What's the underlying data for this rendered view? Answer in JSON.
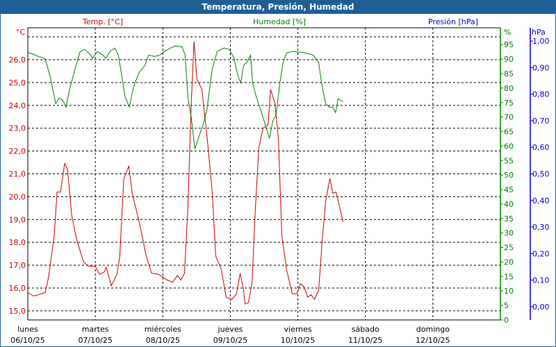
{
  "window": {
    "title": "Temperatura, Presión, Humedad"
  },
  "chart_data": {
    "type": "line",
    "title": "Temperatura, Presión, Humedad",
    "x_unit": "hours since lunes 06/10/25 00:00",
    "x_range": [
      0,
      168
    ],
    "day_labels": [
      {
        "day": "lunes",
        "date": "06/10/25"
      },
      {
        "day": "martes",
        "date": "07/10/25"
      },
      {
        "day": "miércoles",
        "date": "08/10/25"
      },
      {
        "day": "jueves",
        "date": "09/10/25"
      },
      {
        "day": "viernes",
        "date": "10/10/25"
      },
      {
        "day": "sábado",
        "date": "11/10/25"
      },
      {
        "day": "domingo",
        "date": "12/10/25"
      }
    ],
    "grid": true,
    "axes": {
      "temp": {
        "legend": "Temp. [°C]",
        "unit": "°C",
        "range": [
          14.6,
          27.4
        ],
        "ticks": [
          "15,0",
          "16,0",
          "17,0",
          "18,0",
          "19,0",
          "20,0",
          "21,0",
          "22,0",
          "23,0",
          "24,0",
          "25,0",
          "26,0"
        ],
        "color": "#cc0000"
      },
      "humidity": {
        "legend": "Humedad [%]",
        "unit": "%",
        "range": [
          0,
          100.8
        ],
        "ticks": [
          "0",
          "5",
          "10",
          "15",
          "20",
          "25",
          "30",
          "35",
          "40",
          "45",
          "50",
          "55",
          "60",
          "65",
          "70",
          "75",
          "80",
          "85",
          "90",
          "95"
        ],
        "color": "#008000"
      },
      "pressure": {
        "legend": "Presión [hPa]",
        "unit": "hPa",
        "range": [
          -0.05,
          1.05
        ],
        "ticks": [
          "0,00",
          "0,10",
          "0,20",
          "0,30",
          "0,40",
          "0,50",
          "0,60",
          "0,70",
          "0,80",
          "0,90",
          "1,00"
        ],
        "color": "#0000cc"
      }
    },
    "series": [
      {
        "name": "Temp. [°C]",
        "axis": "temp",
        "color": "#cc0000",
        "x": [
          0,
          2,
          3.7,
          6.2,
          7.4,
          9.4,
          10.4,
          11.6,
          13.1,
          14.1,
          15.6,
          17.3,
          19.8,
          21.5,
          24,
          25.5,
          27.2,
          27.9,
          29.7,
          31.7,
          32.7,
          34.1,
          35.9,
          37.1,
          39.6,
          42.1,
          44,
          46.5,
          49.5,
          51.5,
          53.2,
          54.4,
          55.7,
          56.9,
          58.1,
          59.1,
          60.1,
          61.9,
          63.8,
          65.6,
          66.8,
          68.8,
          70.5,
          72.5,
          74.2,
          75.5,
          76.7,
          77.2,
          78.4,
          79.7,
          80.9,
          82.1,
          83.6,
          85.4,
          86.3,
          87.8,
          89.1,
          90.3,
          92,
          94,
          95.7,
          96.9,
          98.2,
          99.5,
          100.7,
          101.9,
          103.4,
          104.6,
          105.9,
          107.4,
          108.4,
          109.6,
          112.1
        ],
        "y": [
          15.8,
          15.65,
          15.7,
          15.8,
          16.5,
          18.3,
          20.2,
          20.2,
          21.45,
          21.2,
          19.2,
          18.15,
          17.15,
          16.95,
          16.95,
          16.6,
          16.7,
          16.9,
          16.1,
          16.6,
          17.4,
          20.75,
          21.35,
          20.15,
          18.9,
          17.4,
          16.65,
          16.6,
          16.35,
          16.25,
          16.55,
          16.35,
          16.65,
          19.5,
          24.1,
          26.8,
          25.15,
          24.7,
          22.55,
          20.15,
          17.4,
          16.8,
          15.6,
          15.5,
          15.75,
          16.65,
          15.9,
          15.3,
          15.35,
          16.2,
          19.5,
          22.1,
          23.0,
          23.15,
          24.7,
          24.1,
          22.55,
          18.3,
          16.8,
          15.75,
          15.75,
          16.2,
          16.05,
          15.6,
          15.7,
          15.5,
          15.9,
          18.0,
          19.8,
          20.8,
          20.15,
          20.2,
          18.9
        ]
      },
      {
        "name": "Humedad [%]",
        "axis": "humidity",
        "color": "#008000",
        "x": [
          0,
          2,
          3.7,
          5,
          6.2,
          7.9,
          9.9,
          11.1,
          12.4,
          13.6,
          14.8,
          16.8,
          18.6,
          20.3,
          22.3,
          23,
          24.7,
          26.7,
          27.7,
          29.2,
          30.9,
          32.2,
          33.4,
          34.6,
          36.1,
          37.6,
          39.6,
          41.6,
          43,
          45,
          47,
          48.5,
          50.7,
          52.4,
          54.9,
          55.9,
          56.9,
          58.1,
          59.4,
          60.6,
          62.3,
          63.6,
          65.6,
          67.3,
          69.8,
          71.7,
          73.3,
          74.7,
          75.7,
          76.7,
          77.9,
          79.2,
          79.9,
          81.2,
          82.9,
          84.4,
          85.9,
          87.1,
          88.3,
          89.6,
          90.8,
          92,
          94,
          97.7,
          101.4,
          103.4,
          104.4,
          105.9,
          107.1,
          108.4,
          109.4,
          110.3,
          112.1
        ],
        "y": [
          92.3,
          91.6,
          90.9,
          90.6,
          89.9,
          84.2,
          74.6,
          76.5,
          75.8,
          73.4,
          79.4,
          86.6,
          92.6,
          93.3,
          91.4,
          90.2,
          92.6,
          91.4,
          90.2,
          92.6,
          93.8,
          91.4,
          84.2,
          77,
          73.4,
          80.6,
          85.4,
          87.8,
          91.4,
          90.9,
          91.4,
          92.6,
          93.8,
          94.5,
          94.2,
          91.4,
          77,
          69.8,
          59,
          62.6,
          67.4,
          72.2,
          86.6,
          92.6,
          93.8,
          93.3,
          90.2,
          84.2,
          81.8,
          87.8,
          89,
          91.4,
          81.8,
          77,
          72.2,
          67.4,
          62.6,
          68.6,
          71,
          81.8,
          89,
          92.1,
          92.6,
          92.3,
          91.4,
          89,
          81.8,
          74.6,
          73.4,
          73.4,
          71.5,
          76.3,
          75.3
        ]
      }
    ]
  }
}
